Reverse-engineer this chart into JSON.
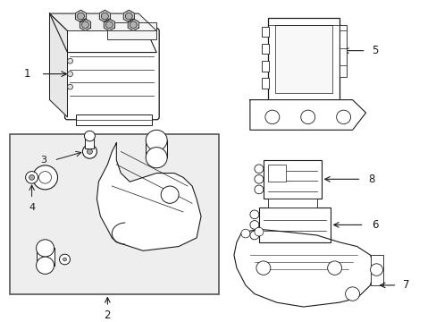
{
  "bg_color": "#ffffff",
  "line_color": "#1a1a1a",
  "box_fill": "#eeeeee",
  "box_border": "#555555",
  "white": "#ffffff",
  "gray_light": "#dddddd"
}
